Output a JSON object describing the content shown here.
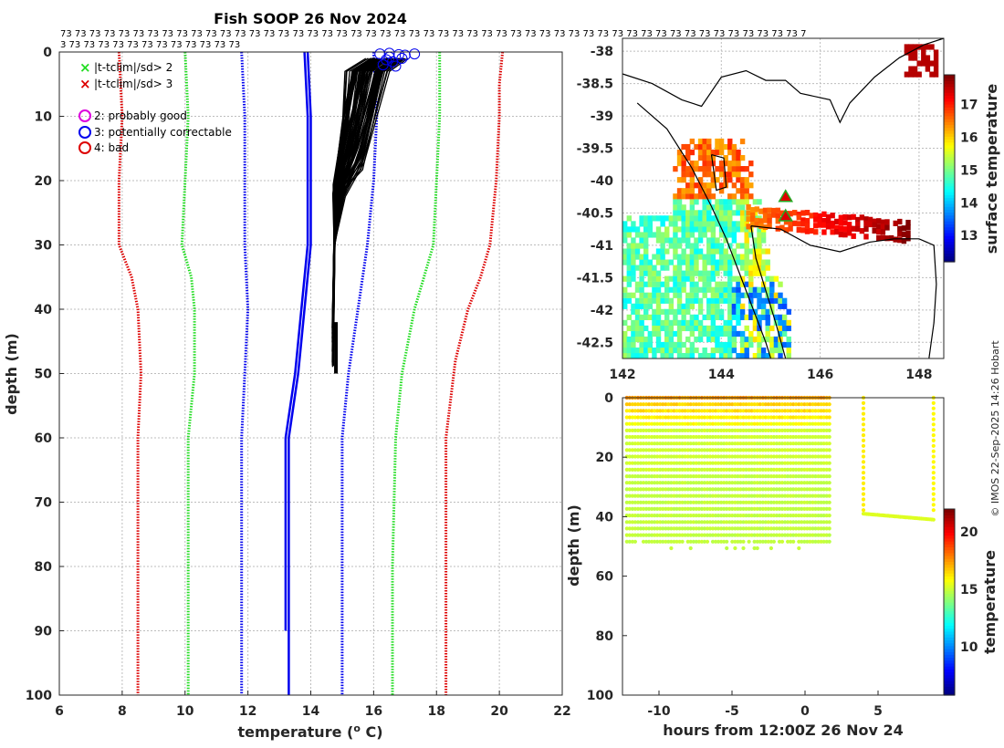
{
  "title": "Fish SOOP 26 Nov 2024",
  "credit": "© IMOS 22-Sep-2025 14:26 Hobart",
  "colors": {
    "green": "#22dd22",
    "red": "#dd0000",
    "blue": "#0000ee",
    "black": "#000000"
  },
  "chart_data": [
    {
      "type": "line",
      "panel": "profile",
      "title": "Fish SOOP 26 Nov 2024",
      "xlabel": "temperature (o C)",
      "ylabel": "depth (m)",
      "xlim": [
        6,
        22
      ],
      "ylim": [
        0,
        100
      ],
      "xticks": [
        "6",
        "8",
        "10",
        "12",
        "14",
        "16",
        "18",
        "20",
        "22"
      ],
      "yticks": [
        "0",
        "10",
        "20",
        "30",
        "40",
        "50",
        "60",
        "70",
        "80",
        "90",
        "100"
      ],
      "counts_row1": "73 73 73 73 73 73 73 73 73 73 73 73 73 73 73 73 73 73 73 73 73 73 73 73 73 73 73 73 73 73 73 73 73 73 73 73 73 73 73 73 73 73 73 73 73 73 73 73 73 73 73 7",
      "counts_row2": "3 73 73 73 73 73 73 73 73 73 73 73 73",
      "legend": [
        {
          "label": "|t-tclim|/sd> 2",
          "marker": "x",
          "color": "#22dd22"
        },
        {
          "label": "|t-tclim|/sd> 3",
          "marker": "x",
          "color": "#dd0000"
        },
        {
          "label": "2: probably good",
          "marker": "o",
          "color": "#dd00dd"
        },
        {
          "label": "3: potentially correctable",
          "marker": "o",
          "color": "#0000ee"
        },
        {
          "label": "4: bad",
          "marker": "o",
          "color": "#dd0000"
        }
      ],
      "series": [
        {
          "name": "clim minus 3sd",
          "color": "#dd0000",
          "style": "dotted",
          "points": [
            [
              7.9,
              0
            ],
            [
              8.0,
              10
            ],
            [
              7.9,
              20
            ],
            [
              7.9,
              30
            ],
            [
              8.3,
              35
            ],
            [
              8.5,
              40
            ],
            [
              8.6,
              50
            ],
            [
              8.5,
              60
            ],
            [
              8.5,
              80
            ],
            [
              8.5,
              100
            ]
          ]
        },
        {
          "name": "clim minus 2sd",
          "color": "#22dd22",
          "style": "dotted",
          "points": [
            [
              10.0,
              0
            ],
            [
              10.1,
              10
            ],
            [
              10.0,
              20
            ],
            [
              9.9,
              30
            ],
            [
              10.2,
              35
            ],
            [
              10.3,
              40
            ],
            [
              10.3,
              50
            ],
            [
              10.1,
              60
            ],
            [
              10.1,
              80
            ],
            [
              10.1,
              100
            ]
          ]
        },
        {
          "name": "clim minus 1sd",
          "color": "#0000ee",
          "style": "dotted",
          "points": [
            [
              11.8,
              0
            ],
            [
              11.9,
              10
            ],
            [
              11.9,
              20
            ],
            [
              11.9,
              30
            ],
            [
              12.0,
              40
            ],
            [
              11.9,
              50
            ],
            [
              11.8,
              60
            ],
            [
              11.8,
              80
            ],
            [
              11.8,
              100
            ]
          ]
        },
        {
          "name": "clim mean",
          "color": "#0000ee",
          "style": "solid",
          "points": [
            [
              13.9,
              0
            ],
            [
              14.0,
              10
            ],
            [
              14.0,
              20
            ],
            [
              14.0,
              30
            ],
            [
              13.8,
              40
            ],
            [
              13.6,
              50
            ],
            [
              13.3,
              60
            ],
            [
              13.3,
              80
            ],
            [
              13.3,
              100
            ]
          ]
        },
        {
          "name": "clim mean alt",
          "color": "#0000ee",
          "style": "solid",
          "points": [
            [
              13.8,
              0
            ],
            [
              13.9,
              10
            ],
            [
              13.9,
              20
            ],
            [
              13.9,
              30
            ],
            [
              13.7,
              40
            ],
            [
              13.5,
              50
            ],
            [
              13.2,
              60
            ],
            [
              13.2,
              80
            ],
            [
              13.2,
              90
            ]
          ]
        },
        {
          "name": "clim plus 1sd",
          "color": "#0000ee",
          "style": "dotted",
          "points": [
            [
              16.0,
              0
            ],
            [
              16.1,
              10
            ],
            [
              16.0,
              20
            ],
            [
              15.8,
              30
            ],
            [
              15.5,
              40
            ],
            [
              15.2,
              50
            ],
            [
              15.0,
              60
            ],
            [
              15.0,
              80
            ],
            [
              15.0,
              100
            ]
          ]
        },
        {
          "name": "clim plus 2sd",
          "color": "#22dd22",
          "style": "dotted",
          "points": [
            [
              18.1,
              0
            ],
            [
              18.1,
              10
            ],
            [
              18.0,
              20
            ],
            [
              17.9,
              30
            ],
            [
              17.6,
              35
            ],
            [
              17.3,
              40
            ],
            [
              16.9,
              50
            ],
            [
              16.7,
              60
            ],
            [
              16.6,
              80
            ],
            [
              16.6,
              100
            ]
          ]
        },
        {
          "name": "clim plus 3sd",
          "color": "#dd0000",
          "style": "dotted",
          "points": [
            [
              20.1,
              0
            ],
            [
              20.0,
              5
            ],
            [
              20.0,
              10
            ],
            [
              19.9,
              20
            ],
            [
              19.7,
              30
            ],
            [
              19.4,
              35
            ],
            [
              19.0,
              40
            ],
            [
              18.6,
              48
            ],
            [
              18.3,
              60
            ],
            [
              18.3,
              80
            ],
            [
              18.3,
              100
            ]
          ]
        }
      ],
      "profiles": {
        "count": 73,
        "color": "#000000",
        "shallow_t_min": 15.8,
        "shallow_t_max": 17.0,
        "mid_depth": 20,
        "mid_t_min": 14.7,
        "mid_t_max": 15.1,
        "deep_t": 14.7,
        "max_depth": 50
      },
      "flagged_points": [
        [
          16.2,
          0.3
        ],
        [
          16.5,
          0.2
        ],
        [
          16.8,
          0.4
        ],
        [
          17.3,
          0.3
        ],
        [
          16.4,
          1.2
        ],
        [
          16.6,
          1.5
        ],
        [
          16.9,
          1.0
        ],
        [
          16.3,
          2.0
        ],
        [
          16.7,
          2.2
        ],
        [
          17.0,
          0.5
        ],
        [
          16.5,
          0.8
        ]
      ]
    },
    {
      "type": "heatmap",
      "panel": "map",
      "xlim": [
        142,
        148.5
      ],
      "ylim": [
        -42.75,
        -37.8
      ],
      "xticks": [
        "142",
        "144",
        "146",
        "148"
      ],
      "yticks": [
        "-38",
        "-38.5",
        "-39",
        "-39.5",
        "-40",
        "-40.5",
        "-41",
        "-41.5",
        "-42",
        "-42.5"
      ],
      "colorbar": {
        "label": "surface temperature",
        "min": 12.2,
        "max": 17.9,
        "ticks": [
          "13",
          "14",
          "15",
          "16",
          "17"
        ]
      },
      "markers": [
        [
          145.3,
          -40.25
        ],
        [
          145.3,
          -40.55
        ]
      ]
    },
    {
      "type": "scatter",
      "panel": "timeseries",
      "xlabel": "hours from 12:00Z 26 Nov 24",
      "ylabel": "depth (m)",
      "xlim": [
        -12.5,
        9.5
      ],
      "ylim": [
        0,
        100
      ],
      "xticks": [
        "-10",
        "-5",
        "0",
        "5"
      ],
      "yticks": [
        "0",
        "20",
        "40",
        "60",
        "80",
        "100"
      ],
      "colorbar": {
        "label": "temperature",
        "min": 5.8,
        "max": 22,
        "ticks": [
          "10",
          "15",
          "20"
        ]
      },
      "cast_hours_start": -12.2,
      "cast_hours_end": 1.8,
      "cast_max_depth": 50,
      "tow": {
        "start_hour": 4.0,
        "end_hour": 8.8,
        "depth": 39,
        "end_depth": 41
      }
    }
  ]
}
